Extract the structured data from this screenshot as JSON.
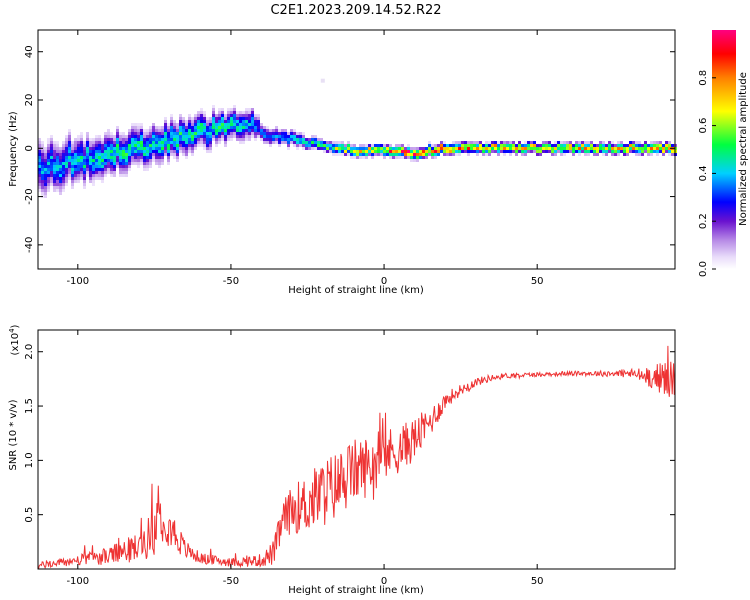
{
  "title": "C2E1.2023.209.14.52.R22",
  "chart_data": [
    {
      "type": "heatmap",
      "name": "spectrogram",
      "xlabel": "Height of straight line (km)",
      "ylabel": "Frequency (Hz)",
      "xlim": [
        -113,
        95
      ],
      "ylim": [
        -50,
        49
      ],
      "xticks": [
        -100,
        -50,
        0,
        50
      ],
      "yticks": [
        -40,
        -20,
        0,
        20,
        40
      ],
      "colorbar": {
        "label": "Normalized spectral amplitude",
        "range": [
          0.0,
          1.0
        ],
        "ticks": [
          0.0,
          0.2,
          0.4,
          0.6,
          0.8
        ],
        "colors": [
          "#ffffff",
          "#c9a8f0",
          "#7a1fd6",
          "#0000ff",
          "#00c8ff",
          "#00ff40",
          "#ffff00",
          "#ff8000",
          "#ff0000",
          "#ff0080"
        ]
      },
      "ridge": {
        "x": [
          -112,
          -100,
          -90,
          -80,
          -70,
          -60,
          -50,
          -43,
          -40,
          -30,
          -20,
          -10,
          0,
          10,
          20,
          40,
          60,
          80,
          93
        ],
        "frequency": [
          -8,
          -5,
          -2,
          1,
          4,
          7,
          9,
          11,
          6,
          4,
          1,
          -1,
          -1,
          -2,
          0,
          0,
          0,
          0,
          0
        ],
        "peak_amplitude": [
          0.35,
          0.4,
          0.45,
          0.45,
          0.45,
          0.45,
          0.45,
          0.4,
          0.3,
          0.4,
          0.5,
          0.7,
          0.75,
          0.85,
          0.8,
          0.7,
          0.7,
          0.7,
          0.75
        ],
        "spread": [
          14,
          12,
          11,
          10,
          10,
          9,
          8,
          8,
          5,
          4,
          3,
          3,
          3,
          3,
          3,
          3,
          3,
          3,
          3
        ]
      },
      "isolated_points": [
        {
          "x": -20,
          "frequency": 28
        }
      ]
    },
    {
      "type": "line",
      "name": "snr",
      "xlabel": "Height of straight line (km)",
      "ylabel": "SNR (10 * v/v)",
      "y_multiplier": "(x10",
      "y_multiplier_exp": "4",
      "y_multiplier_close": ")",
      "xlim": [
        -113,
        95
      ],
      "ylim": [
        0,
        2.2
      ],
      "xticks": [
        -100,
        -50,
        0,
        50
      ],
      "yticks": [
        0.5,
        1.0,
        1.5,
        2.0
      ],
      "ytick_labels": [
        "0.5",
        "1.0",
        "1.5",
        "2.0"
      ],
      "color": "#ee3333",
      "series": [
        {
          "x": [
            -113,
            -100,
            -90,
            -80,
            -75,
            -72,
            -70,
            -65,
            -60,
            -50,
            -40,
            -36,
            -33,
            -30,
            -25,
            -20,
            -15,
            -10,
            -5,
            0,
            5,
            10,
            15,
            20,
            25,
            30,
            35,
            40,
            50,
            60,
            70,
            80,
            85,
            90,
            93,
            95
          ],
          "y": [
            0.03,
            0.08,
            0.12,
            0.2,
            0.35,
            0.55,
            0.4,
            0.18,
            0.1,
            0.06,
            0.08,
            0.15,
            0.45,
            0.55,
            0.6,
            0.7,
            0.78,
            0.9,
            0.95,
            1.05,
            1.1,
            1.2,
            1.35,
            1.55,
            1.65,
            1.72,
            1.76,
            1.78,
            1.79,
            1.8,
            1.8,
            1.8,
            1.78,
            1.76,
            1.75,
            1.75
          ],
          "noise": [
            0.03,
            0.05,
            0.08,
            0.14,
            0.22,
            0.3,
            0.2,
            0.09,
            0.05,
            0.04,
            0.06,
            0.12,
            0.18,
            0.22,
            0.28,
            0.32,
            0.32,
            0.3,
            0.28,
            0.25,
            0.22,
            0.2,
            0.14,
            0.08,
            0.05,
            0.04,
            0.03,
            0.025,
            0.02,
            0.02,
            0.025,
            0.04,
            0.08,
            0.14,
            0.2,
            0.2
          ]
        }
      ]
    }
  ]
}
